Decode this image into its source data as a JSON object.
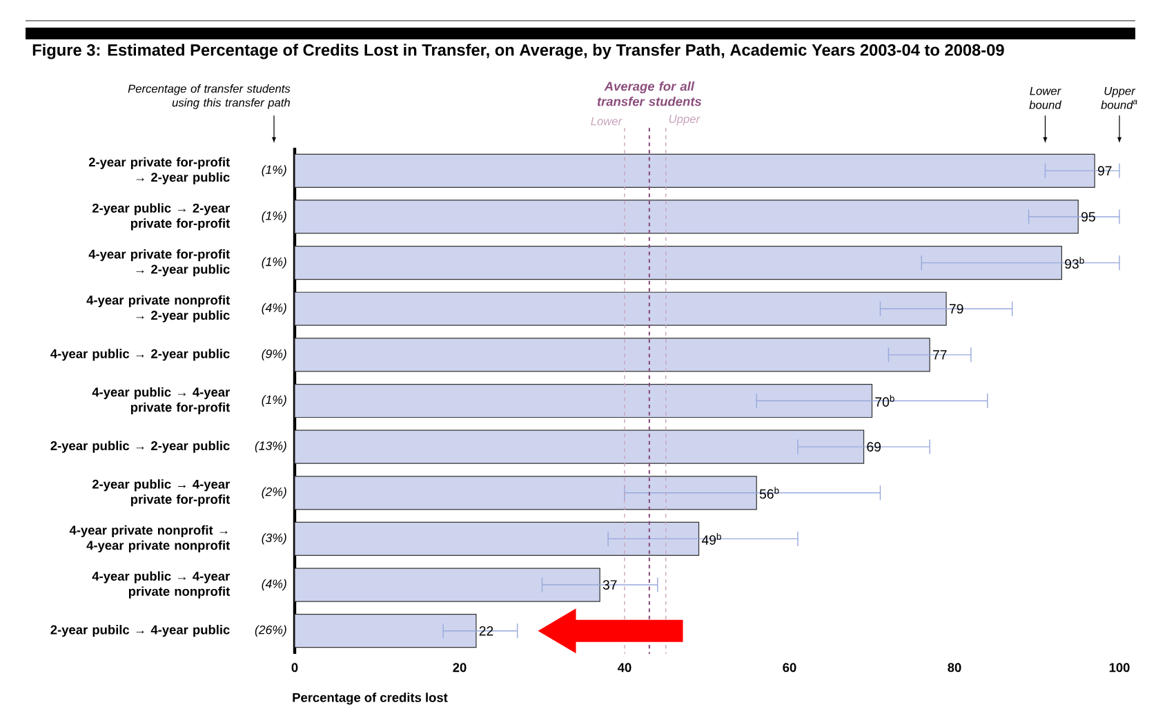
{
  "chart_data": {
    "type": "bar",
    "orientation": "horizontal",
    "title": "Figure 3: Estimated Percentage of Credits Lost in Transfer, on Average, by Transfer Path, Academic Years 2003-04 to 2008-09",
    "categories": [
      "2-year private for-profit → 2-year public",
      "2-year public → 2-year private for-profit",
      "4-year private for-profit → 2-year public",
      "4-year private nonprofit → 2-year public",
      "4-year public → 2-year public",
      "4-year public → 4-year private for-profit",
      "2-year public → 2-year public",
      "2-year public → 4-year private for-profit",
      "4-year private nonprofit → 4-year private nonprofit",
      "4-year public → 4-year private nonprofit",
      "2-year pubilc → 4-year public"
    ],
    "values": [
      97,
      95,
      93,
      79,
      77,
      70,
      69,
      56,
      49,
      37,
      22
    ],
    "value_labels": [
      "97",
      "95",
      "93$^{b}$",
      "79",
      "77",
      "70$^{b}$",
      "69",
      "56$^{b}$",
      "49$^{b}$",
      "37",
      "22"
    ],
    "errors": [
      [
        91,
        100
      ],
      [
        89,
        100
      ],
      [
        76,
        100
      ],
      [
        71,
        87
      ],
      [
        72,
        82
      ],
      [
        56,
        84
      ],
      [
        61,
        77
      ],
      [
        40,
        71
      ],
      [
        38,
        61
      ],
      [
        30,
        44
      ],
      [
        18,
        27
      ]
    ],
    "color": "#ced4ee",
    "xlim": [
      0,
      100
    ],
    "xticks": [
      0,
      20,
      40,
      60,
      80,
      100
    ],
    "xlabel": "Percentage of credits lost",
    "ref_lines": [
      {
        "axis": "x",
        "value": 40,
        "label": "Lower",
        "color": "#c9a3bd",
        "line_style": "dashed"
      },
      {
        "axis": "x",
        "value": 43,
        "label": "Average for all transfer students",
        "color": "#8b4d7c",
        "line_style": "dashed"
      },
      {
        "axis": "x",
        "value": 45,
        "label": "Upper",
        "color": "#c9a3bd",
        "line_style": "dashed"
      }
    ],
    "annotations": [
      "Percentage of transfer students using this transfer path",
      "Lower bound",
      "Upper bound$^{a}$",
      "(1%)",
      "(1%)",
      "(1%)",
      "(4%)",
      "(9%)",
      "(1%)",
      "(13%)",
      "(2%)",
      "(3%)",
      "(4%)",
      "(26%)"
    ]
  }
}
